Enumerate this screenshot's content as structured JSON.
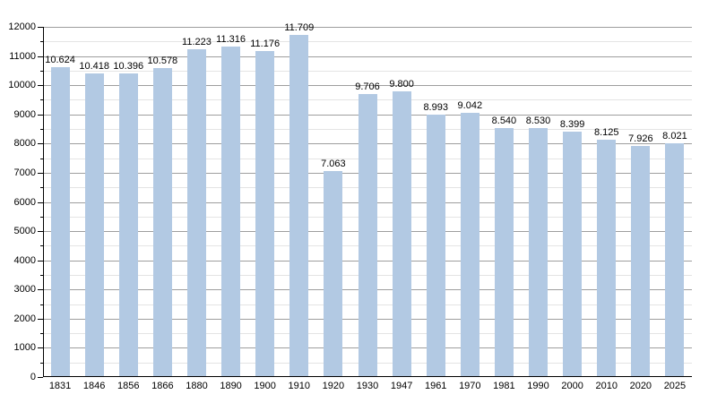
{
  "chart_data": {
    "type": "bar",
    "title": "",
    "xlabel": "",
    "ylabel": "",
    "categories": [
      "1831",
      "1846",
      "1856",
      "1866",
      "1880",
      "1890",
      "1900",
      "1910",
      "1920",
      "1930",
      "1947",
      "1961",
      "1970",
      "1981",
      "1990",
      "2000",
      "2010",
      "2020",
      "2025"
    ],
    "values": [
      10624,
      10418,
      10396,
      10578,
      11223,
      11316,
      11176,
      11709,
      7063,
      9706,
      9800,
      8993,
      9042,
      8540,
      8530,
      8399,
      8125,
      7926,
      8021
    ],
    "value_labels": [
      "10.624",
      "10.418",
      "10.396",
      "10.578",
      "11.223",
      "11.316",
      "11.176",
      "11.709",
      "7.063",
      "9.706",
      "9.800",
      "8.993",
      "9.042",
      "8.540",
      "8.530",
      "8.399",
      "8.125",
      "7.926",
      "8.021"
    ],
    "ylim": [
      0,
      12000
    ],
    "y_major_step": 1000,
    "y_minor_step": 500,
    "y_tick_labels": [
      "0",
      "1000",
      "2000",
      "3000",
      "4000",
      "5000",
      "6000",
      "7000",
      "8000",
      "9000",
      "10000",
      "11000",
      "12000"
    ],
    "grid": true,
    "legend": "none",
    "colors": {
      "bar_fill": "#b2c9e3",
      "major_gridline": "#9e9e9e",
      "minor_gridline": "#e4e4e4",
      "axis": "#000000",
      "label_text": "#000000",
      "background": "#ffffff"
    }
  }
}
